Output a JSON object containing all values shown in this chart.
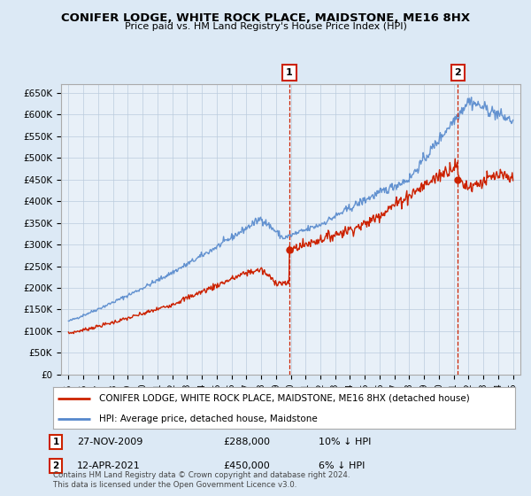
{
  "title": "CONIFER LODGE, WHITE ROCK PLACE, MAIDSTONE, ME16 8HX",
  "subtitle": "Price paid vs. HM Land Registry's House Price Index (HPI)",
  "legend_line1": "CONIFER LODGE, WHITE ROCK PLACE, MAIDSTONE, ME16 8HX (detached house)",
  "legend_line2": "HPI: Average price, detached house, Maidstone",
  "annotation1_date": "27-NOV-2009",
  "annotation1_price": "£288,000",
  "annotation1_hpi": "10% ↓ HPI",
  "annotation1_year": 2009.9,
  "annotation1_value": 288000,
  "annotation2_date": "12-APR-2021",
  "annotation2_price": "£450,000",
  "annotation2_hpi": "6% ↓ HPI",
  "annotation2_year": 2021.28,
  "annotation2_value": 450000,
  "footer": "Contains HM Land Registry data © Crown copyright and database right 2024.\nThis data is licensed under the Open Government Licence v3.0.",
  "hpi_color": "#5588cc",
  "price_color": "#cc2200",
  "annotation_color": "#cc2200",
  "background_color": "#dce9f5",
  "plot_bg_color": "#e8f0f8",
  "ylim": [
    0,
    670000
  ],
  "yticks": [
    0,
    50000,
    100000,
    150000,
    200000,
    250000,
    300000,
    350000,
    400000,
    450000,
    500000,
    550000,
    600000,
    650000
  ],
  "xlim_start": 1994.5,
  "xlim_end": 2025.5
}
